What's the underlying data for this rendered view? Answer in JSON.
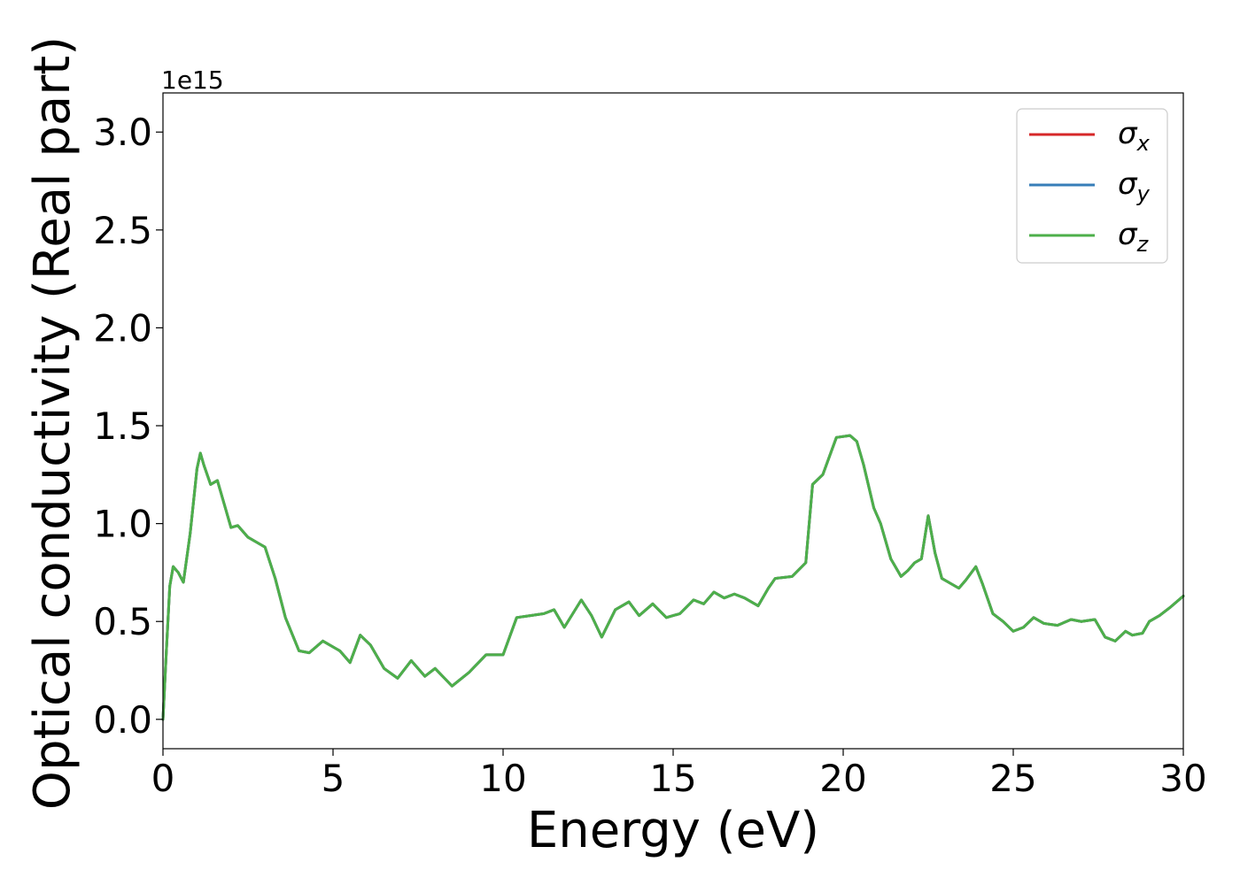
{
  "chart_data": {
    "type": "line",
    "title": "",
    "xlabel": "Energy (eV)",
    "ylabel": "Optical conductivity (Real part)",
    "y_offset_label": "1e15",
    "xlim": [
      0,
      30
    ],
    "ylim": [
      -0.15,
      3.2
    ],
    "x_ticks": [
      0,
      5,
      10,
      15,
      20,
      25,
      30
    ],
    "x_tick_labels": [
      "0",
      "5",
      "10",
      "15",
      "20",
      "25",
      "30"
    ],
    "y_ticks": [
      0.0,
      0.5,
      1.0,
      1.5,
      2.0,
      2.5,
      3.0
    ],
    "y_tick_labels": [
      "0.0",
      "0.5",
      "1.0",
      "1.5",
      "2.0",
      "2.5",
      "3.0"
    ],
    "grid": false,
    "legend_position": "top-right",
    "series": [
      {
        "name": "σx",
        "legend_symbol": "σ",
        "legend_subscript": "x",
        "color": "#d62728",
        "x": [
          0,
          0.1,
          0.2,
          0.3,
          0.45,
          0.6,
          0.8,
          1.0,
          1.1,
          1.2,
          1.4,
          1.6,
          1.8,
          2.0,
          2.2,
          2.5,
          2.8,
          3.0,
          3.3,
          3.6,
          4.0,
          4.3,
          4.7,
          5.2,
          5.5,
          5.8,
          6.1,
          6.5,
          6.9,
          7.3,
          7.7,
          8.0,
          8.5,
          9.0,
          9.5,
          10.0,
          10.4,
          10.8,
          11.2,
          11.5,
          11.8,
          12.3,
          12.6,
          12.9,
          13.3,
          13.7,
          14.0,
          14.4,
          14.8,
          15.2,
          15.6,
          15.9,
          16.2,
          16.5,
          16.8,
          17.1,
          17.5,
          17.8,
          18.0,
          18.5,
          18.9,
          19.1,
          19.4,
          19.8,
          20.2,
          20.4,
          20.6,
          20.9,
          21.1,
          21.4,
          21.7,
          21.9,
          22.1,
          22.3,
          22.5,
          22.7,
          22.9,
          23.1,
          23.4,
          23.6,
          23.9,
          24.1,
          24.4,
          24.7,
          25.0,
          25.3,
          25.6,
          25.9,
          26.3,
          26.7,
          27.0,
          27.4,
          27.7,
          28.0,
          28.3,
          28.5,
          28.8,
          29.0,
          29.3,
          29.6,
          30.0
        ],
        "values": [
          0.0,
          0.35,
          0.68,
          0.78,
          0.75,
          0.7,
          0.95,
          1.28,
          1.36,
          1.3,
          1.2,
          1.22,
          1.1,
          0.98,
          0.99,
          0.93,
          0.9,
          0.88,
          0.72,
          0.52,
          0.35,
          0.34,
          0.4,
          0.35,
          0.29,
          0.43,
          0.38,
          0.26,
          0.21,
          0.3,
          0.22,
          0.26,
          0.17,
          0.24,
          0.33,
          0.33,
          0.52,
          0.53,
          0.54,
          0.56,
          0.47,
          0.61,
          0.53,
          0.42,
          0.56,
          0.6,
          0.53,
          0.59,
          0.52,
          0.54,
          0.61,
          0.59,
          0.65,
          0.62,
          0.64,
          0.62,
          0.58,
          0.67,
          0.72,
          0.73,
          0.8,
          1.2,
          1.25,
          1.44,
          1.45,
          1.42,
          1.3,
          1.08,
          1.0,
          0.82,
          0.73,
          0.76,
          0.8,
          0.82,
          1.04,
          0.85,
          0.72,
          0.7,
          0.67,
          0.71,
          0.78,
          0.69,
          0.54,
          0.5,
          0.45,
          0.47,
          0.52,
          0.49,
          0.48,
          0.51,
          0.5,
          0.51,
          0.42,
          0.4,
          0.45,
          0.43,
          0.44,
          0.5,
          0.53,
          0.57,
          0.63
        ]
      },
      {
        "name": "σy",
        "legend_symbol": "σ",
        "legend_subscript": "y",
        "color": "#377eb8",
        "x": [
          0,
          0.1,
          0.2,
          0.3,
          0.45,
          0.6,
          0.8,
          1.0,
          1.1,
          1.2,
          1.4,
          1.6,
          1.8,
          2.0,
          2.2,
          2.5,
          2.8,
          3.0,
          3.3,
          3.6,
          4.0,
          4.3,
          4.7,
          5.2,
          5.5,
          5.8,
          6.1,
          6.5,
          6.9,
          7.3,
          7.7,
          8.0,
          8.5,
          9.0,
          9.5,
          10.0,
          10.4,
          10.8,
          11.2,
          11.5,
          11.8,
          12.3,
          12.6,
          12.9,
          13.3,
          13.7,
          14.0,
          14.4,
          14.8,
          15.2,
          15.6,
          15.9,
          16.2,
          16.5,
          16.8,
          17.1,
          17.5,
          17.8,
          18.0,
          18.5,
          18.9,
          19.1,
          19.4,
          19.8,
          20.2,
          20.4,
          20.6,
          20.9,
          21.1,
          21.4,
          21.7,
          21.9,
          22.1,
          22.3,
          22.5,
          22.7,
          22.9,
          23.1,
          23.4,
          23.6,
          23.9,
          24.1,
          24.4,
          24.7,
          25.0,
          25.3,
          25.6,
          25.9,
          26.3,
          26.7,
          27.0,
          27.4,
          27.7,
          28.0,
          28.3,
          28.5,
          28.8,
          29.0,
          29.3,
          29.6,
          30.0
        ],
        "values": [
          0.0,
          0.35,
          0.68,
          0.78,
          0.75,
          0.7,
          0.95,
          1.28,
          1.36,
          1.3,
          1.2,
          1.22,
          1.1,
          0.98,
          0.99,
          0.93,
          0.9,
          0.88,
          0.72,
          0.52,
          0.35,
          0.34,
          0.4,
          0.35,
          0.29,
          0.43,
          0.38,
          0.26,
          0.21,
          0.3,
          0.22,
          0.26,
          0.17,
          0.24,
          0.33,
          0.33,
          0.52,
          0.53,
          0.54,
          0.56,
          0.47,
          0.61,
          0.53,
          0.42,
          0.56,
          0.6,
          0.53,
          0.59,
          0.52,
          0.54,
          0.61,
          0.59,
          0.65,
          0.62,
          0.64,
          0.62,
          0.58,
          0.67,
          0.72,
          0.73,
          0.8,
          1.2,
          1.25,
          1.44,
          1.45,
          1.42,
          1.3,
          1.08,
          1.0,
          0.82,
          0.73,
          0.76,
          0.8,
          0.82,
          1.04,
          0.85,
          0.72,
          0.7,
          0.67,
          0.71,
          0.78,
          0.69,
          0.54,
          0.5,
          0.45,
          0.47,
          0.52,
          0.49,
          0.48,
          0.51,
          0.5,
          0.51,
          0.42,
          0.4,
          0.45,
          0.43,
          0.44,
          0.5,
          0.53,
          0.57,
          0.63
        ]
      },
      {
        "name": "σz",
        "legend_symbol": "σ",
        "legend_subscript": "z",
        "color": "#4daf4a",
        "x": [
          0,
          0.1,
          0.2,
          0.3,
          0.45,
          0.6,
          0.8,
          1.0,
          1.1,
          1.2,
          1.4,
          1.6,
          1.8,
          2.0,
          2.2,
          2.5,
          2.8,
          3.0,
          3.3,
          3.6,
          4.0,
          4.3,
          4.7,
          5.2,
          5.5,
          5.8,
          6.1,
          6.5,
          6.9,
          7.3,
          7.7,
          8.0,
          8.5,
          9.0,
          9.5,
          10.0,
          10.4,
          10.8,
          11.2,
          11.5,
          11.8,
          12.3,
          12.6,
          12.9,
          13.3,
          13.7,
          14.0,
          14.4,
          14.8,
          15.2,
          15.6,
          15.9,
          16.2,
          16.5,
          16.8,
          17.1,
          17.5,
          17.8,
          18.0,
          18.5,
          18.9,
          19.1,
          19.4,
          19.8,
          20.2,
          20.4,
          20.6,
          20.9,
          21.1,
          21.4,
          21.7,
          21.9,
          22.1,
          22.3,
          22.5,
          22.7,
          22.9,
          23.1,
          23.4,
          23.6,
          23.9,
          24.1,
          24.4,
          24.7,
          25.0,
          25.3,
          25.6,
          25.9,
          26.3,
          26.7,
          27.0,
          27.4,
          27.7,
          28.0,
          28.3,
          28.5,
          28.8,
          29.0,
          29.3,
          29.6,
          30.0
        ],
        "values": [
          0.0,
          0.35,
          0.68,
          0.78,
          0.75,
          0.7,
          0.95,
          1.28,
          1.36,
          1.3,
          1.2,
          1.22,
          1.1,
          0.98,
          0.99,
          0.93,
          0.9,
          0.88,
          0.72,
          0.52,
          0.35,
          0.34,
          0.4,
          0.35,
          0.29,
          0.43,
          0.38,
          0.26,
          0.21,
          0.3,
          0.22,
          0.26,
          0.17,
          0.24,
          0.33,
          0.33,
          0.52,
          0.53,
          0.54,
          0.56,
          0.47,
          0.61,
          0.53,
          0.42,
          0.56,
          0.6,
          0.53,
          0.59,
          0.52,
          0.54,
          0.61,
          0.59,
          0.65,
          0.62,
          0.64,
          0.62,
          0.58,
          0.67,
          0.72,
          0.73,
          0.8,
          1.2,
          1.25,
          1.44,
          1.45,
          1.42,
          1.3,
          1.08,
          1.0,
          0.82,
          0.73,
          0.76,
          0.8,
          0.82,
          1.04,
          0.85,
          0.72,
          0.7,
          0.67,
          0.71,
          0.78,
          0.69,
          0.54,
          0.5,
          0.45,
          0.47,
          0.52,
          0.49,
          0.48,
          0.51,
          0.5,
          0.51,
          0.42,
          0.4,
          0.45,
          0.43,
          0.44,
          0.5,
          0.53,
          0.57,
          0.63
        ]
      }
    ]
  }
}
